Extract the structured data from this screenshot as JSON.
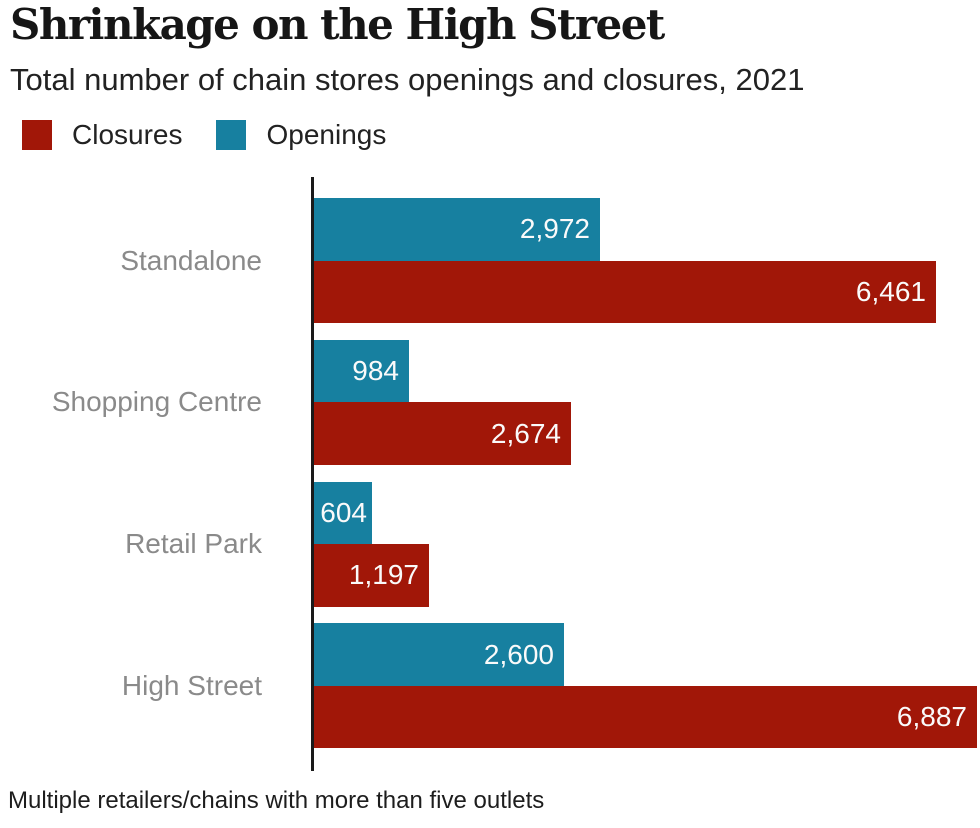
{
  "header": {
    "title": "Shrinkage on the High Street",
    "subtitle": "Total number of chain stores openings and closures, 2021"
  },
  "legend": [
    {
      "label": "Closures",
      "color": "#a11708"
    },
    {
      "label": "Openings",
      "color": "#1780a0"
    }
  ],
  "footnote": "Multiple retailers/chains with more than five outlets",
  "colors": {
    "closures": "#a11708",
    "openings": "#1780a0",
    "axis": "#1a1a1a",
    "category_label": "#8a8a8a",
    "value_label": "#fafafa",
    "background": "#ffffff"
  },
  "chart_data": {
    "type": "bar",
    "orientation": "horizontal",
    "title": "Shrinkage on the High Street",
    "subtitle": "Total number of chain stores openings and closures, 2021",
    "categories": [
      "Standalone",
      "Shopping Centre",
      "Retail Park",
      "High Street"
    ],
    "series": [
      {
        "name": "Openings",
        "color": "#1780a0",
        "values": [
          2972,
          984,
          604,
          2600
        ],
        "labels": [
          "2,972",
          "984",
          "604",
          "2,600"
        ]
      },
      {
        "name": "Closures",
        "color": "#a11708",
        "values": [
          6461,
          2674,
          1197,
          6887
        ],
        "labels": [
          "6,461",
          "2,674",
          "1,197",
          "6,887"
        ]
      }
    ],
    "xlim": [
      0,
      6900
    ],
    "grid": false,
    "legend_position": "top-left",
    "bar_order": "Openings bar drawn above Closures bar within each category group",
    "value_labels": "inside bar end, white"
  }
}
